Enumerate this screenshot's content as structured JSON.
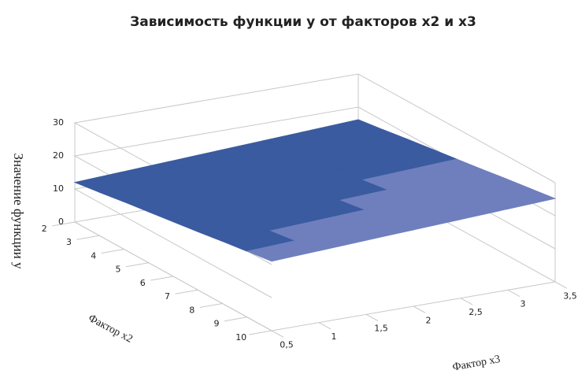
{
  "chart_data": {
    "type": "surface",
    "title": "Зависимость функции y от факторов x2 и x3",
    "z_label": "Значение функции y",
    "x2_label": "Фактор x2",
    "x3_label": "Фактор x3",
    "x2": [
      2,
      3,
      4,
      5,
      6,
      7,
      8,
      9,
      10
    ],
    "x3": [
      {
        "value": 0.5,
        "label": "0,5"
      },
      {
        "value": 1,
        "label": "1"
      },
      {
        "value": 1.5,
        "label": "1,5"
      },
      {
        "value": 2,
        "label": "2"
      },
      {
        "value": 2.5,
        "label": "2,5"
      },
      {
        "value": 3,
        "label": "3"
      },
      {
        "value": 3.5,
        "label": "3,5"
      }
    ],
    "z": [
      [
        12,
        12.7,
        13.4,
        14.1,
        14.8,
        15.5,
        16.2
      ],
      [
        13.1,
        13.8,
        14.5,
        15.2,
        15.9,
        16.6,
        17.3
      ],
      [
        14.3,
        15,
        15.7,
        16.4,
        17.1,
        17.8,
        18.5
      ],
      [
        15.4,
        16.1,
        16.8,
        17.5,
        18.2,
        18.9,
        19.6
      ],
      [
        16.5,
        17.2,
        17.9,
        18.6,
        19.3,
        20,
        20.7
      ],
      [
        17.6,
        18.3,
        19,
        19.7,
        20.4,
        21.1,
        21.8
      ],
      [
        18.8,
        19.5,
        20.2,
        20.9,
        21.6,
        22.3,
        23
      ],
      [
        19.9,
        20.6,
        21.3,
        22,
        22.7,
        23.4,
        24.1
      ],
      [
        21,
        21.7,
        22.4,
        23.1,
        23.8,
        24.5,
        25.2
      ]
    ],
    "zlim": [
      0,
      30
    ],
    "zticks": [
      0,
      10,
      20,
      30
    ],
    "band_colors": [
      "#2c4a8c",
      "#3a5ba0",
      "#6f7fbd"
    ],
    "grid": true
  }
}
